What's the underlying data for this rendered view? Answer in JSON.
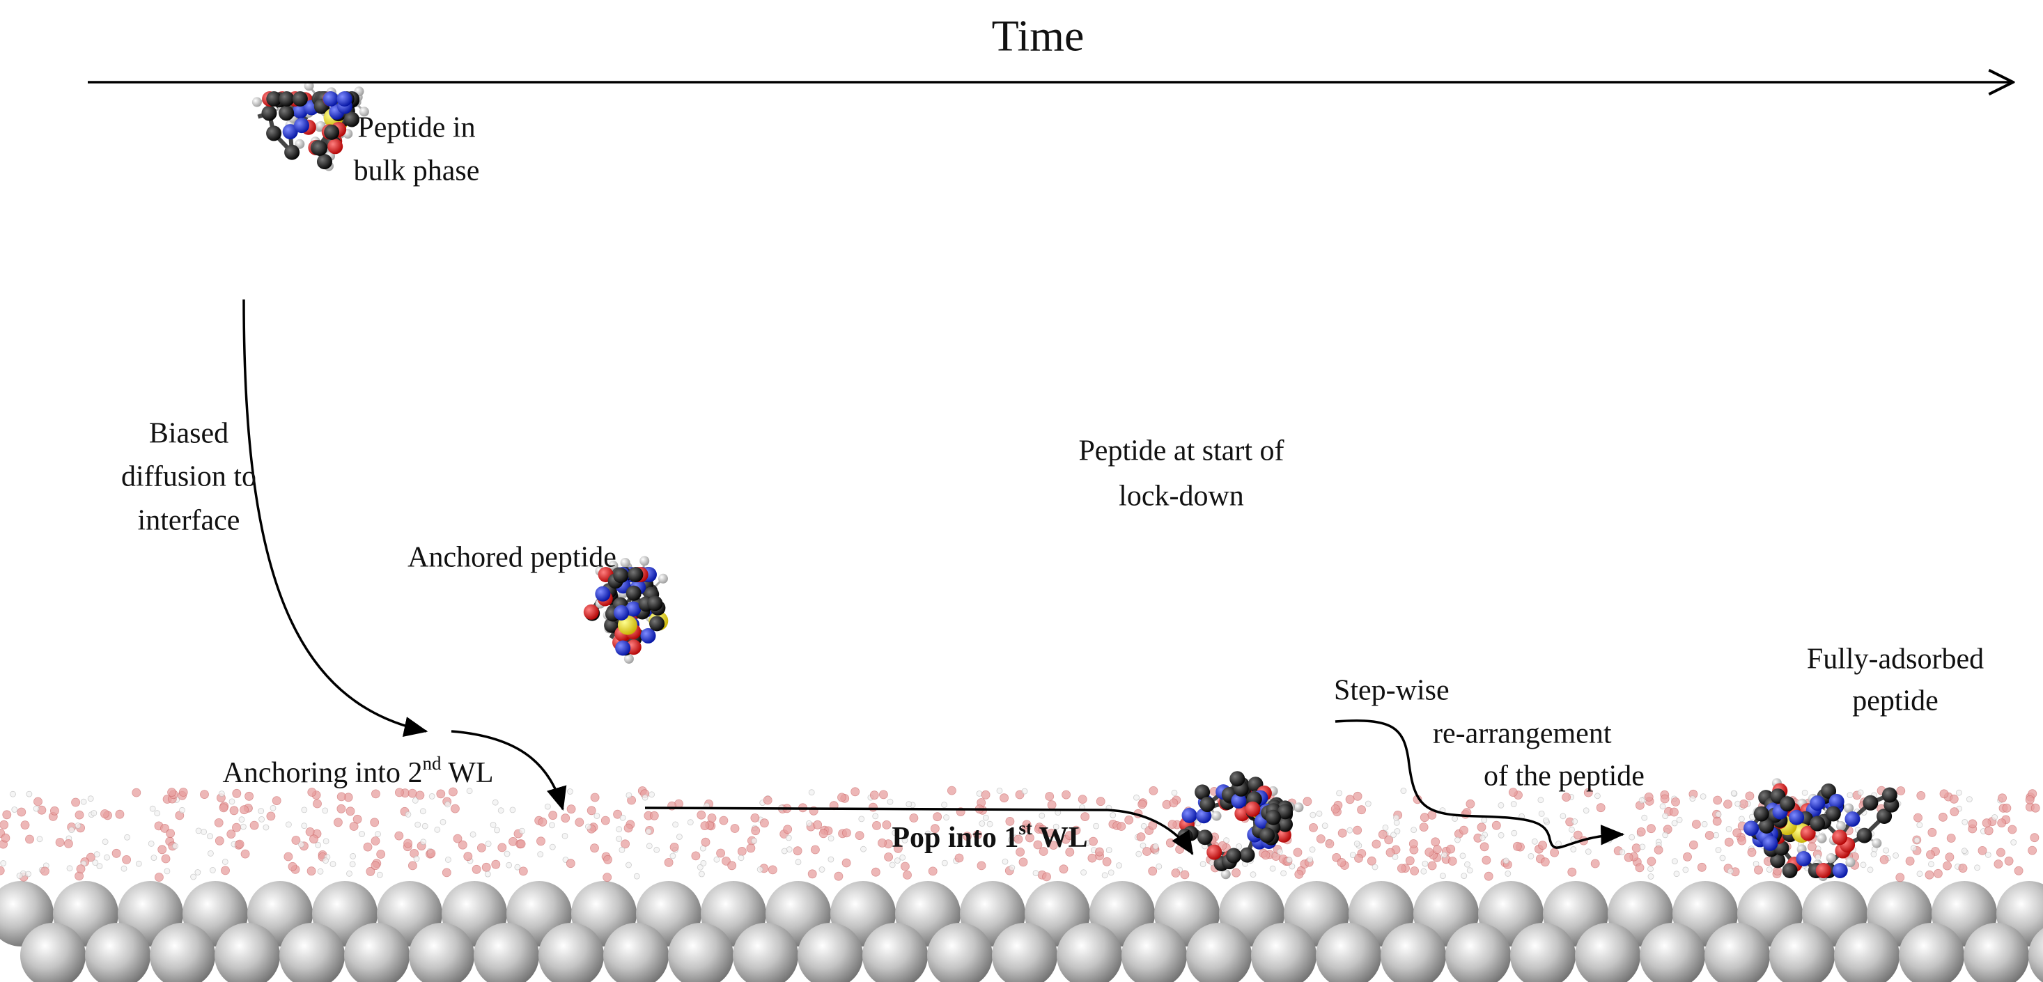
{
  "time_axis": {
    "label": "Time"
  },
  "stages": {
    "bulk": {
      "lines": [
        "Peptide in",
        "bulk  phase"
      ]
    },
    "diffusion": {
      "lines": [
        "Biased",
        "diffusion to",
        "interface"
      ]
    },
    "anchored": {
      "lines": [
        "Anchored peptide"
      ]
    },
    "anchoring": {
      "text": "Anchoring into 2",
      "sup": "nd",
      "tail": " WL"
    },
    "lockdown": {
      "lines": [
        "Peptide at start of",
        "lock-down"
      ]
    },
    "pop": {
      "text": "Pop into 1",
      "sup": "st",
      "tail": " WL"
    },
    "stepwise": {
      "lines": [
        "Step-wise",
        "re-arrangement",
        "of the peptide"
      ]
    },
    "adsorbed": {
      "lines": [
        "Fully-adsorbed",
        "peptide"
      ]
    }
  }
}
